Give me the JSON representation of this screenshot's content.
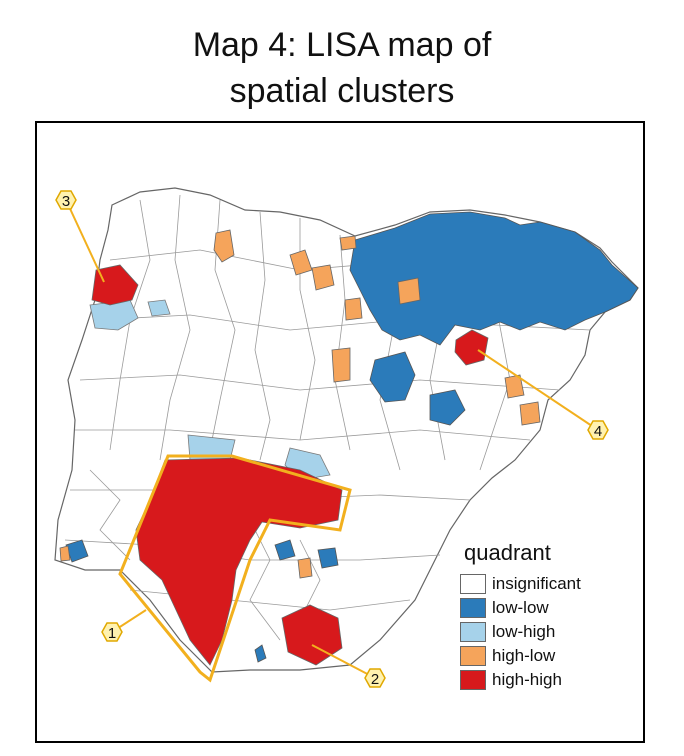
{
  "title_line1": "Map 4: LISA map of",
  "title_line2": "spatial clusters",
  "legend": {
    "title": "quadrant",
    "items": [
      {
        "label": "insignificant",
        "color": "#ffffff"
      },
      {
        "label": "low-low",
        "color": "#2b7bba"
      },
      {
        "label": "low-high",
        "color": "#a6d2ea"
      },
      {
        "label": "high-low",
        "color": "#f5a45b"
      },
      {
        "label": "high-high",
        "color": "#d7191c"
      }
    ]
  },
  "callouts": [
    "1",
    "2",
    "3",
    "4"
  ],
  "colors": {
    "callout_fill": "#fff2b0",
    "callout_stroke": "#e0a800",
    "cluster_outline": "#f2b01e"
  }
}
